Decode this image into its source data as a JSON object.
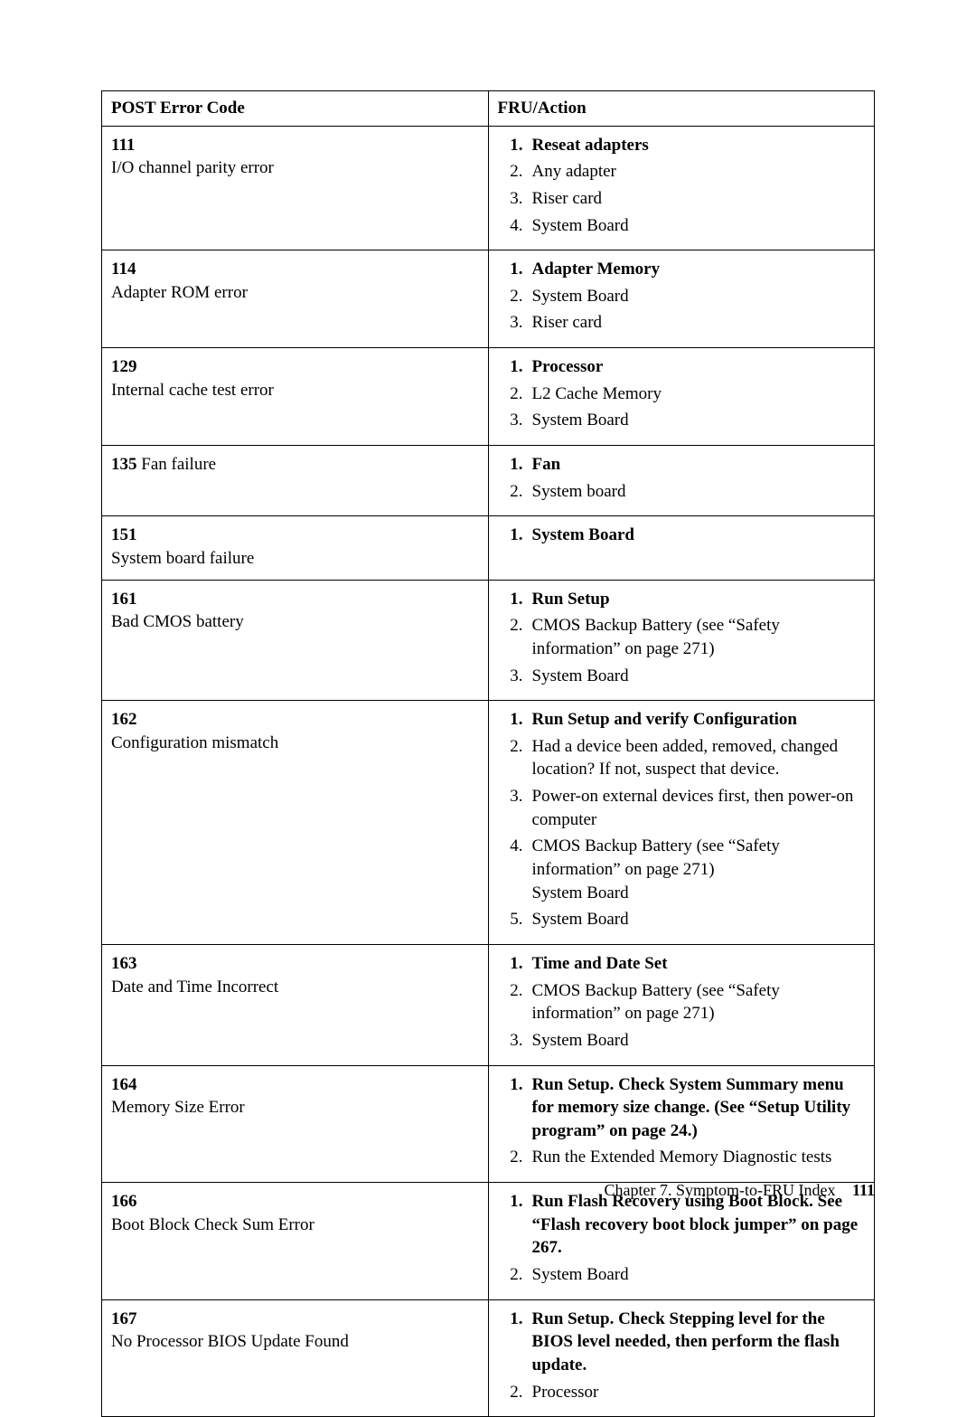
{
  "table": {
    "header": {
      "col1": "POST Error Code",
      "col2": "FRU/Action"
    },
    "rows": [
      {
        "code": "111",
        "desc": "I/O channel parity error",
        "actions": [
          {
            "text": "Reseat adapters",
            "bold": true
          },
          {
            "text": "Any adapter",
            "bold": false
          },
          {
            "text": "Riser card",
            "bold": false
          },
          {
            "text": "System Board",
            "bold": false
          }
        ]
      },
      {
        "code": "114",
        "desc": "Adapter ROM error",
        "actions": [
          {
            "text": "Adapter Memory",
            "bold": true
          },
          {
            "text": "System Board",
            "bold": false
          },
          {
            "text": "Riser card",
            "bold": false
          }
        ]
      },
      {
        "code": "129",
        "desc": "Internal cache test error",
        "actions": [
          {
            "text": "Processor",
            "bold": true
          },
          {
            "text": "L2 Cache Memory",
            "bold": false
          },
          {
            "text": "System Board",
            "bold": false
          }
        ]
      },
      {
        "code": "135",
        "desc": "Fan failure",
        "inline": true,
        "actions": [
          {
            "text": "Fan",
            "bold": true
          },
          {
            "text": "System board",
            "bold": false
          }
        ]
      },
      {
        "code": "151",
        "desc": "System board failure",
        "actions": [
          {
            "text": "System Board",
            "bold": true
          }
        ]
      },
      {
        "code": "161",
        "desc": "Bad CMOS battery",
        "actions": [
          {
            "text": "Run Setup",
            "bold": true
          },
          {
            "text": "CMOS Backup Battery (see “Safety information” on page 271)",
            "bold": false
          },
          {
            "text": "System Board",
            "bold": false
          }
        ]
      },
      {
        "code": "162",
        "desc": "Configuration mismatch",
        "actions": [
          {
            "text": "Run Setup and verify Configuration",
            "bold": true
          },
          {
            "text": "Had a device been added, removed, changed location? If not, suspect that device.",
            "bold": false
          },
          {
            "text": "Power-on external devices first, then power-on computer",
            "bold": false
          },
          {
            "text": "CMOS Backup Battery (see “Safety information” on page 271)",
            "bold": false,
            "sub": "System Board"
          },
          {
            "text": "System Board",
            "bold": false
          }
        ]
      },
      {
        "code": "163",
        "desc": "Date and Time Incorrect",
        "actions": [
          {
            "text": "Time and Date Set",
            "bold": true
          },
          {
            "text": "CMOS Backup Battery (see “Safety information” on page 271)",
            "bold": false
          },
          {
            "text": "System Board",
            "bold": false
          }
        ]
      },
      {
        "code": "164",
        "desc": "Memory Size Error",
        "actions": [
          {
            "text": "Run Setup. Check System Summary menu for memory size change. (See “Setup Utility program” on page 24.)",
            "bold": true
          },
          {
            "text": "Run the Extended Memory Diagnostic tests",
            "bold": false
          }
        ]
      },
      {
        "code": "166",
        "desc": "Boot Block Check Sum Error",
        "actions": [
          {
            "text": "Run Flash Recovery using Boot Block. See “Flash recovery boot block jumper” on page 267.",
            "bold": true
          },
          {
            "text": "System Board",
            "bold": false
          }
        ]
      },
      {
        "code": "167",
        "desc": "No Processor BIOS Update Found",
        "actions": [
          {
            "text": "Run Setup. Check Stepping level for the BIOS level needed, then perform the flash update.",
            "bold": true
          },
          {
            "text": "Processor",
            "bold": false
          }
        ]
      }
    ]
  },
  "footer": {
    "chapter": "Chapter 7. Symptom-to-FRU Index",
    "page": "111"
  }
}
